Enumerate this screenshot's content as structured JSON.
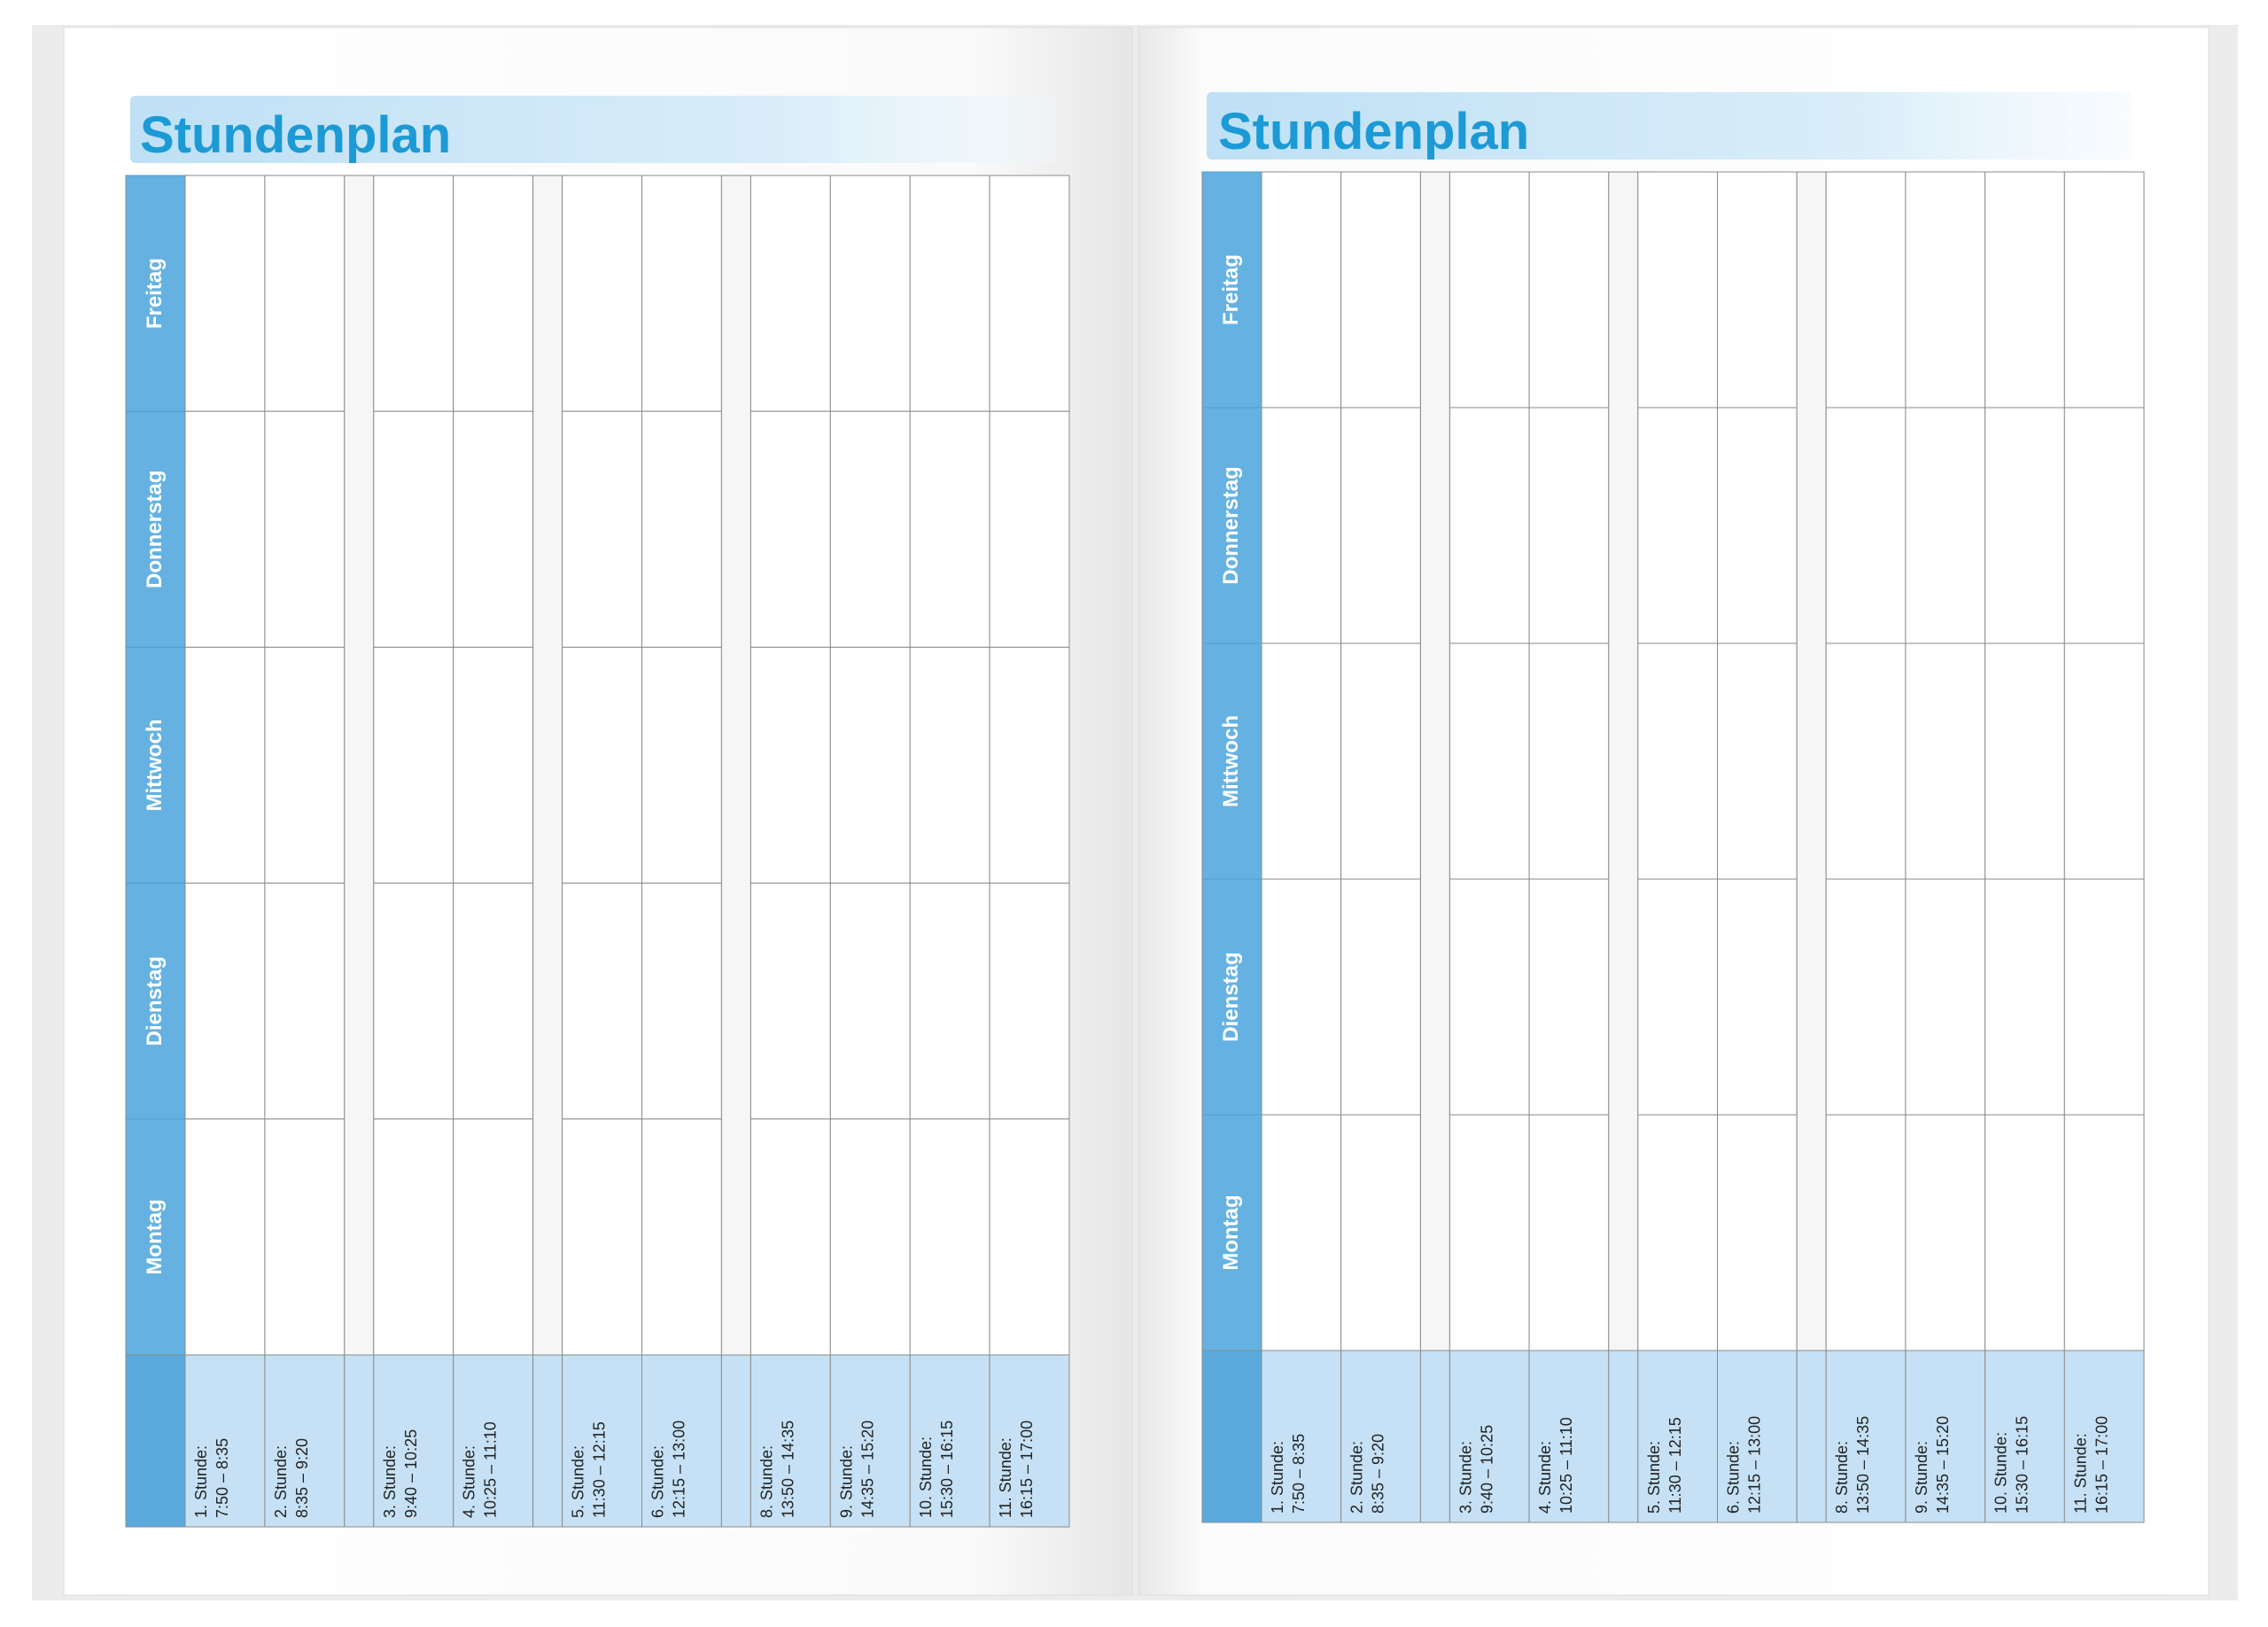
{
  "pages": [
    {
      "title": "Stundenplan",
      "days": [
        "Montag",
        "Dienstag",
        "Mittwoch",
        "Donnerstag",
        "Freitag"
      ],
      "periods": [
        {
          "label": "1.   Stunde:",
          "time": "7:50 – 8:35"
        },
        {
          "label": "2. Stunde:",
          "time": "8:35 – 9:20"
        },
        {
          "label": "3. Stunde:",
          "time": "9:40 – 10:25"
        },
        {
          "label": "4. Stunde:",
          "time": "10:25 – 11:10"
        },
        {
          "label": "5. Stunde:",
          "time": "11:30 – 12:15"
        },
        {
          "label": "6. Stunde:",
          "time": "12:15 – 13:00"
        },
        {
          "label": "8. Stunde:",
          "time": "13:50 – 14:35"
        },
        {
          "label": "9. Stunde:",
          "time": "14:35 – 15:20"
        },
        {
          "label": "10. Stunde:",
          "time": "15:30 – 16:15"
        },
        {
          "label": "11. Stunde:",
          "time": "16:15 – 17:00"
        }
      ]
    },
    {
      "title": "Stundenplan",
      "days": [
        "Montag",
        "Dienstag",
        "Mittwoch",
        "Donnerstag",
        "Freitag"
      ],
      "periods": [
        {
          "label": "1.   Stunde:",
          "time": "7:50 – 8:35"
        },
        {
          "label": "2. Stunde:",
          "time": "8:35 – 9:20"
        },
        {
          "label": "3. Stunde:",
          "time": "9:40 – 10:25"
        },
        {
          "label": "4. Stunde:",
          "time": "10:25 – 11:10"
        },
        {
          "label": "5. Stunde:",
          "time": "11:30 – 12:15"
        },
        {
          "label": "6. Stunde:",
          "time": "12:15 – 13:00"
        },
        {
          "label": "8. Stunde:",
          "time": "13:50 – 14:35"
        },
        {
          "label": "9. Stunde:",
          "time": "14:35 – 15:20"
        },
        {
          "label": "10. Stunde:",
          "time": "15:30 – 16:15"
        },
        {
          "label": "11. Stunde:",
          "time": "16:15 – 17:00"
        }
      ]
    }
  ]
}
